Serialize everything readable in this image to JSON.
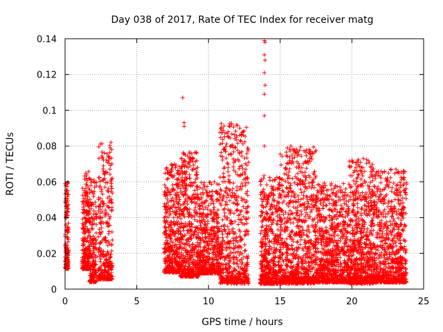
{
  "chart_data": {
    "type": "scatter",
    "title": "Day 038 of 2017, Rate Of TEC Index for receiver matg",
    "xlabel": "GPS time / hours",
    "ylabel": "ROTI / TECUs",
    "xlim": [
      0,
      25
    ],
    "ylim": [
      0,
      0.14
    ],
    "xticks": [
      0,
      5,
      10,
      15,
      20,
      25
    ],
    "yticks": [
      0,
      0.02,
      0.04,
      0.06,
      0.08,
      0.1,
      0.12,
      0.14
    ],
    "xtick_labels": [
      "0",
      "5",
      "10",
      "15",
      "20",
      "25"
    ],
    "ytick_labels": [
      "0",
      "0.02",
      "0.04",
      "0.06",
      "0.08",
      "0.1",
      "0.12",
      "0.14"
    ],
    "grid": true,
    "marker": "+",
    "color": "#ff0000",
    "clusters": [
      {
        "x0": 0.0,
        "x1": 0.25,
        "ybase": 0.018,
        "spread": 0.012,
        "ymax": 0.06,
        "density": 160
      },
      {
        "x0": 1.2,
        "x1": 1.7,
        "ybase": 0.025,
        "spread": 0.025,
        "ymax": 0.066,
        "density": 260
      },
      {
        "x0": 1.7,
        "x1": 2.2,
        "ybase": 0.015,
        "spread": 0.02,
        "ymax": 0.065,
        "density": 180
      },
      {
        "x0": 2.3,
        "x1": 3.3,
        "ybase": 0.022,
        "spread": 0.03,
        "ymax": 0.082,
        "density": 320
      },
      {
        "x0": 6.9,
        "x1": 8.0,
        "ybase": 0.016,
        "spread": 0.012,
        "ymax": 0.07,
        "density": 420
      },
      {
        "x0": 8.0,
        "x1": 9.3,
        "ybase": 0.018,
        "spread": 0.02,
        "ymax": 0.077,
        "density": 520
      },
      {
        "x0": 9.3,
        "x1": 10.8,
        "ybase": 0.017,
        "spread": 0.015,
        "ymax": 0.06,
        "density": 520
      },
      {
        "x0": 10.8,
        "x1": 12.8,
        "ybase": 0.016,
        "spread": 0.025,
        "ymax": 0.093,
        "density": 620
      },
      {
        "x0": 13.6,
        "x1": 15.0,
        "ybase": 0.014,
        "spread": 0.02,
        "ymax": 0.064,
        "density": 560
      },
      {
        "x0": 15.0,
        "x1": 17.5,
        "ybase": 0.014,
        "spread": 0.025,
        "ymax": 0.08,
        "density": 900
      },
      {
        "x0": 17.5,
        "x1": 19.8,
        "ybase": 0.012,
        "spread": 0.015,
        "ymax": 0.06,
        "density": 820
      },
      {
        "x0": 19.8,
        "x1": 21.5,
        "ybase": 0.014,
        "spread": 0.022,
        "ymax": 0.073,
        "density": 700
      },
      {
        "x0": 21.5,
        "x1": 23.8,
        "ybase": 0.012,
        "spread": 0.015,
        "ymax": 0.067,
        "density": 800
      }
    ],
    "outliers": [
      {
        "x": 8.2,
        "y": 0.107
      },
      {
        "x": 8.3,
        "y": 0.093
      },
      {
        "x": 8.3,
        "y": 0.091
      },
      {
        "x": 11.3,
        "y": 0.087
      },
      {
        "x": 11.4,
        "y": 0.085
      },
      {
        "x": 11.6,
        "y": 0.092
      },
      {
        "x": 11.2,
        "y": 0.077
      },
      {
        "x": 13.9,
        "y": 0.139
      },
      {
        "x": 13.95,
        "y": 0.138
      },
      {
        "x": 13.9,
        "y": 0.131
      },
      {
        "x": 13.95,
        "y": 0.128
      },
      {
        "x": 13.9,
        "y": 0.121
      },
      {
        "x": 13.95,
        "y": 0.114
      },
      {
        "x": 13.9,
        "y": 0.109
      },
      {
        "x": 13.9,
        "y": 0.097
      },
      {
        "x": 13.9,
        "y": 0.08
      },
      {
        "x": 15.5,
        "y": 0.079
      },
      {
        "x": 3.2,
        "y": 0.082
      },
      {
        "x": 3.25,
        "y": 0.078
      },
      {
        "x": 20.8,
        "y": 0.073
      },
      {
        "x": 22.7,
        "y": 0.067
      }
    ]
  }
}
